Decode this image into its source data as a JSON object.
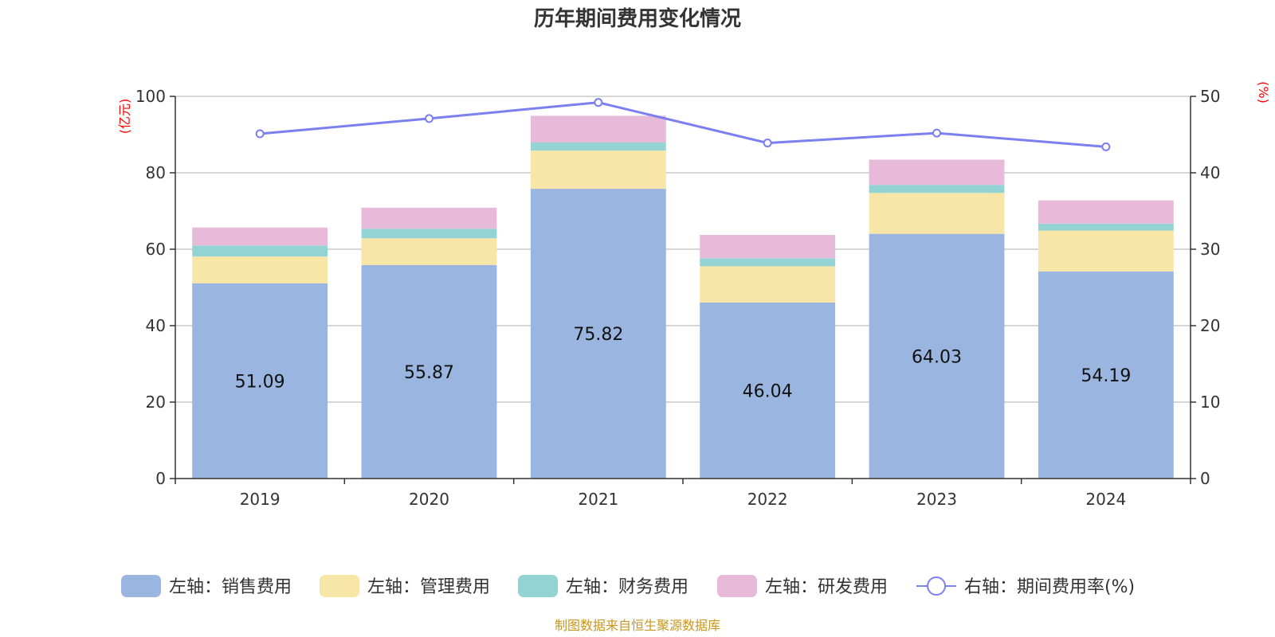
{
  "chart_data": {
    "type": "bar",
    "title": "历年期间费用变化情况",
    "categories": [
      "2019",
      "2020",
      "2021",
      "2022",
      "2023",
      "2024"
    ],
    "left_axis": {
      "unit": "(亿元)",
      "ylim": [
        0,
        100
      ],
      "ticks": [
        "0",
        "20",
        "40",
        "60",
        "80",
        "100"
      ]
    },
    "right_axis": {
      "unit": "(%)",
      "ylim": [
        0,
        50
      ],
      "ticks": [
        "0",
        "10",
        "20",
        "30",
        "40",
        "50"
      ]
    },
    "stacked": true,
    "grid": true,
    "legend_position": "bottom",
    "series": [
      {
        "name": "左轴：销售费用",
        "axis": "left",
        "type": "bar",
        "color": "#9ab6e0",
        "values": [
          51.09,
          55.87,
          75.82,
          46.04,
          64.03,
          54.19
        ],
        "labels": [
          "51.09",
          "55.87",
          "75.82",
          "46.04",
          "64.03",
          "54.19"
        ]
      },
      {
        "name": "左轴：管理费用",
        "axis": "left",
        "type": "bar",
        "color": "#f8e6a8",
        "values": [
          7.0,
          7.0,
          10.0,
          9.5,
          10.7,
          10.7
        ]
      },
      {
        "name": "左轴：财务费用",
        "axis": "left",
        "type": "bar",
        "color": "#93d3d3",
        "values": [
          2.9,
          2.5,
          2.1,
          2.1,
          2.1,
          1.8
        ]
      },
      {
        "name": "左轴：研发费用",
        "axis": "left",
        "type": "bar",
        "color": "#e8bada",
        "values": [
          4.7,
          5.5,
          7.0,
          6.1,
          6.6,
          6.1
        ]
      },
      {
        "name": "右轴：期间费用率(%)",
        "axis": "right",
        "type": "line",
        "color": "#7b7ff0",
        "values": [
          45.1,
          47.1,
          49.2,
          43.9,
          45.2,
          43.4
        ]
      }
    ]
  },
  "source": "制图数据来自恒生聚源数据库"
}
